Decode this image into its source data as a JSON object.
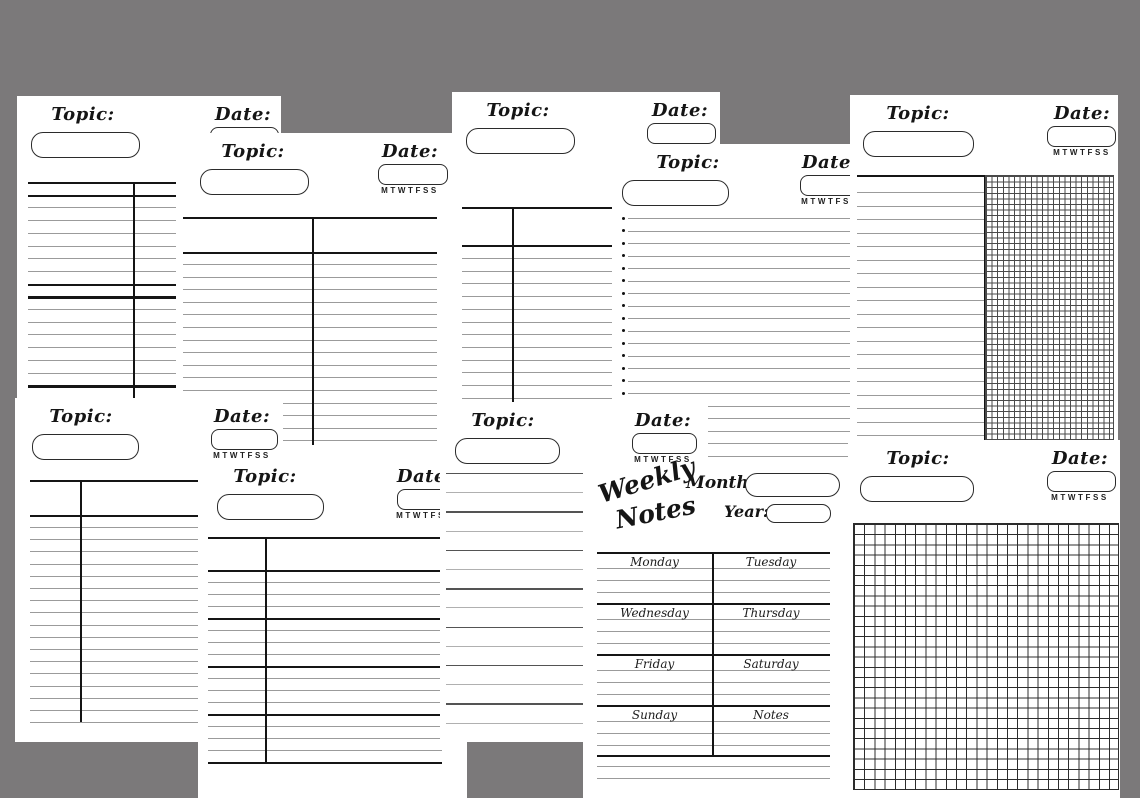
{
  "canvas": {
    "background_color": "#7b797a",
    "page_color": "#ffffff",
    "ink_color": "#151515",
    "thin_line_color": "#9b9b9b"
  },
  "labels": {
    "topic": "Topic:",
    "date": "Date:",
    "weekday_initials": "MTWTFSS"
  },
  "weekly": {
    "title_word1": "Weekly",
    "title_word2": "Notes",
    "month_label": "Month:",
    "year_label": "Year:",
    "day_cells": [
      "Monday",
      "Tuesday",
      "Wednesday",
      "Thursday",
      "Friday",
      "Saturday",
      "Sunday",
      "Notes"
    ]
  },
  "pages": [
    {
      "name": "cornell-notes-page-right-divider",
      "has_topic": true,
      "has_date": true,
      "has_weekday_initials": false
    },
    {
      "name": "cornell-notes-page-center-divider",
      "has_topic": true,
      "has_date": true,
      "has_weekday_initials": true
    },
    {
      "name": "cornell-notes-page-left-divider",
      "has_topic": true,
      "has_date": true,
      "has_weekday_initials": false
    },
    {
      "name": "bulleted-notes-page",
      "has_topic": true,
      "has_date": true,
      "has_weekday_initials": true
    },
    {
      "name": "lined-and-grid-notes-page",
      "has_topic": true,
      "has_date": true,
      "has_weekday_initials": true
    },
    {
      "name": "cornell-notes-page-left-divider-2",
      "has_topic": true,
      "has_date": true,
      "has_weekday_initials": true
    },
    {
      "name": "sectioned-notes-page",
      "has_topic": true,
      "has_date": true,
      "has_weekday_initials": true
    },
    {
      "name": "ruled-notes-page",
      "has_topic": true,
      "has_date": true,
      "has_weekday_initials": true
    },
    {
      "name": "weekly-notes-page",
      "has_topic": false,
      "has_date": false,
      "has_weekday_initials": false
    },
    {
      "name": "grid-notes-page",
      "has_topic": true,
      "has_date": true,
      "has_weekday_initials": true
    }
  ]
}
